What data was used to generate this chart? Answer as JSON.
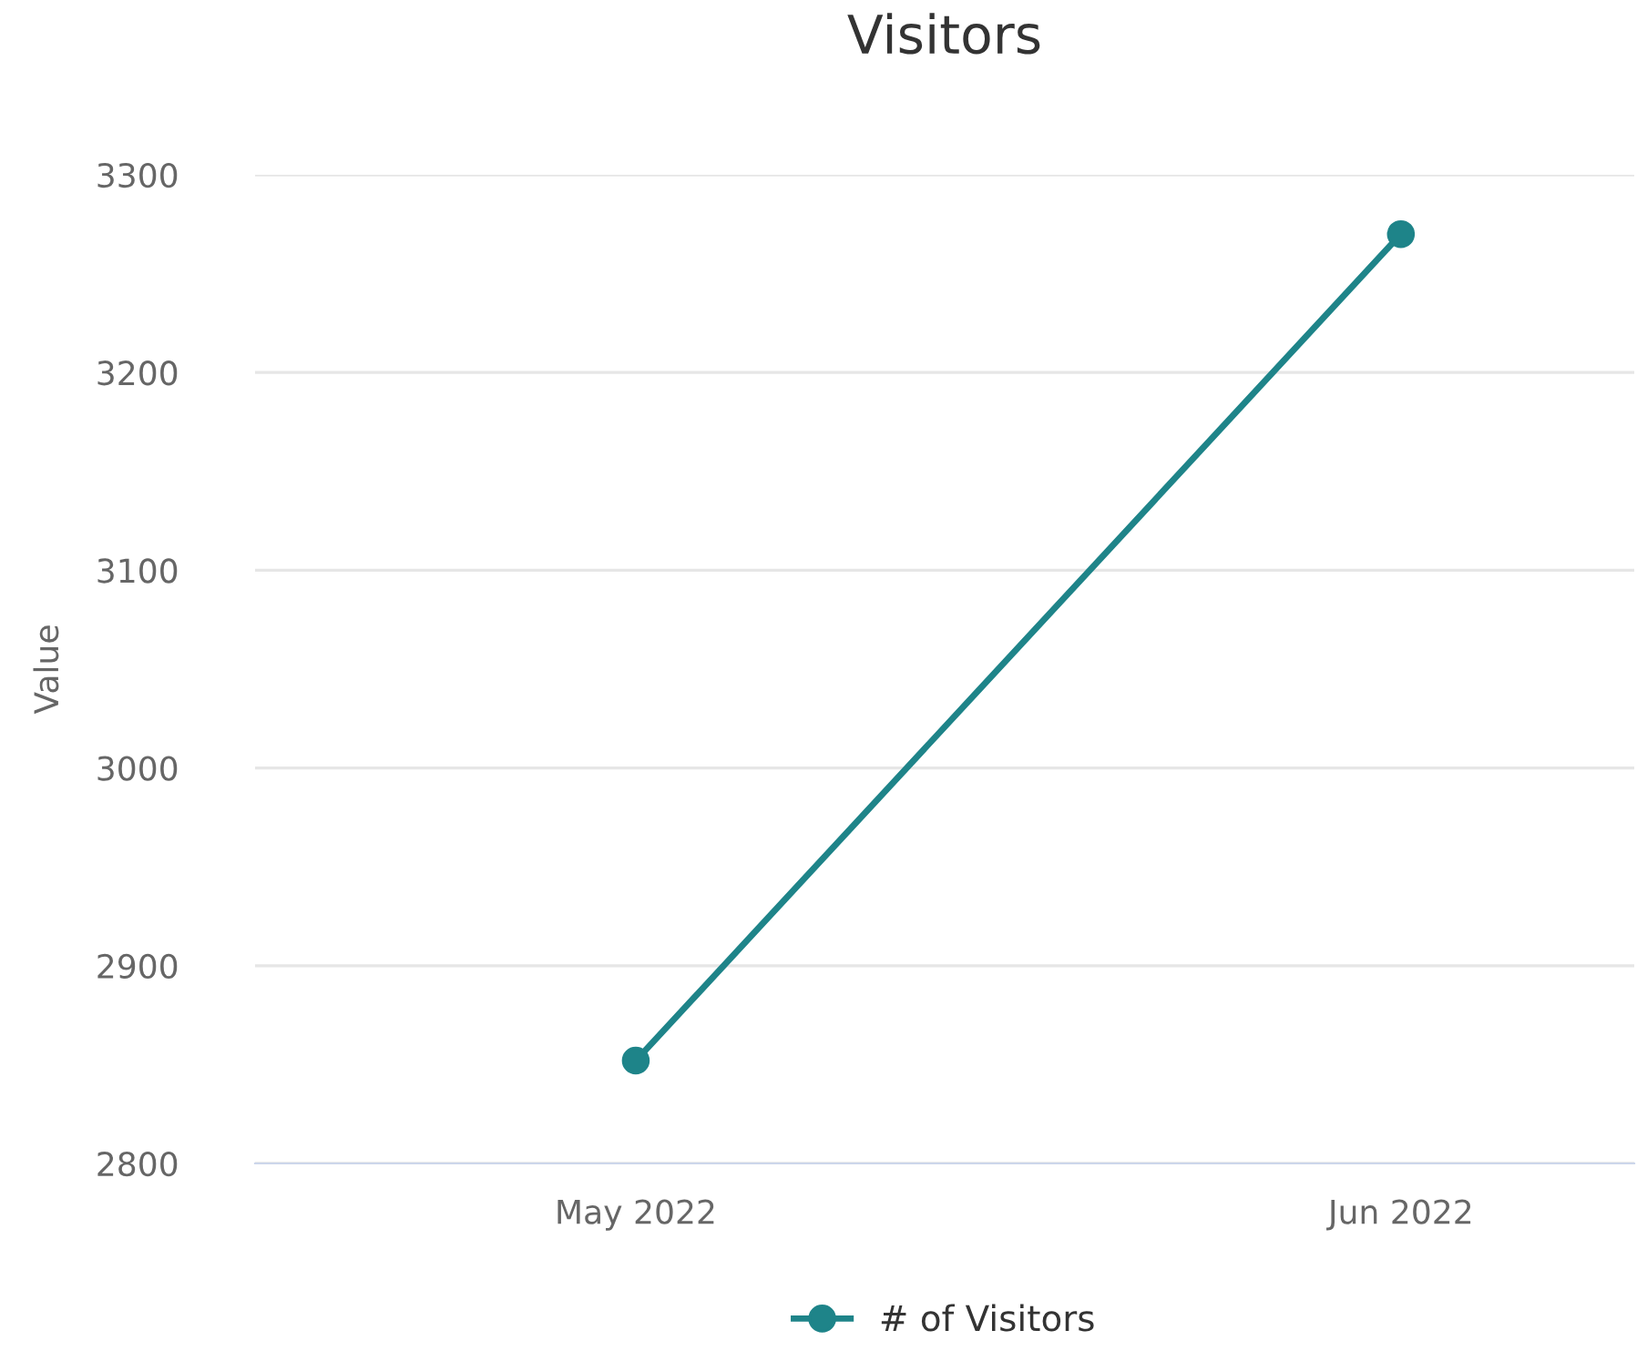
{
  "chart_data": {
    "type": "line",
    "title": "Visitors",
    "ylabel": "Value",
    "categories": [
      "May 2022",
      "Jun 2022"
    ],
    "series": [
      {
        "name": "# of Visitors",
        "color": "#1e8489",
        "values": [
          2852,
          3270
        ]
      }
    ],
    "ylim": [
      2800,
      3300
    ],
    "yticks": [
      2800,
      2900,
      3000,
      3100,
      3200,
      3300
    ],
    "grid": "y",
    "legend": "bottom",
    "marker": "circle",
    "line_style": "solid"
  }
}
